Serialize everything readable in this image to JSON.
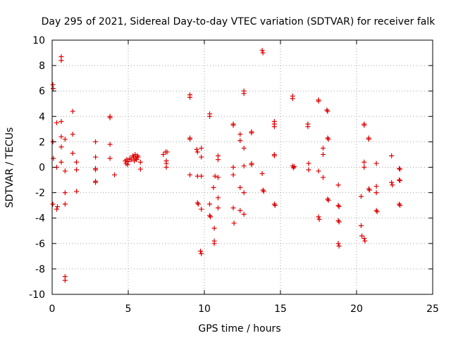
{
  "chart_data": {
    "type": "scatter",
    "title": "Day 295 of 2021, Sidereal Day-to-day VTEC variation (SDTVAR) for receiver falk",
    "xlabel": "GPS time / hours",
    "ylabel": "SDTVAR / TECUs",
    "xlim": [
      0,
      25
    ],
    "ylim": [
      -10,
      10
    ],
    "x_ticks": [
      0,
      5,
      10,
      15,
      20,
      25
    ],
    "y_ticks": [
      -10,
      -8,
      -6,
      -4,
      -2,
      0,
      2,
      4,
      6,
      8,
      10
    ],
    "grid": true,
    "marker": "+",
    "marker_color": "#e00000",
    "series": [
      {
        "name": "SDTVAR",
        "points": [
          [
            0.05,
            6.5
          ],
          [
            0.07,
            6.2
          ],
          [
            0.05,
            2.0
          ],
          [
            0.08,
            0.7
          ],
          [
            0.05,
            -2.9
          ],
          [
            0.3,
            3.5
          ],
          [
            0.3,
            -3.3
          ],
          [
            0.3,
            0.0
          ],
          [
            0.35,
            -3.1
          ],
          [
            0.6,
            8.7
          ],
          [
            0.6,
            8.4
          ],
          [
            0.6,
            3.6
          ],
          [
            0.6,
            2.4
          ],
          [
            0.6,
            1.6
          ],
          [
            0.6,
            0.4
          ],
          [
            0.85,
            2.2
          ],
          [
            0.85,
            -0.3
          ],
          [
            0.85,
            -2.0
          ],
          [
            0.85,
            -2.9
          ],
          [
            0.85,
            -8.6
          ],
          [
            0.85,
            -8.9
          ],
          [
            1.35,
            4.4
          ],
          [
            1.35,
            2.6
          ],
          [
            1.35,
            1.1
          ],
          [
            1.6,
            0.4
          ],
          [
            1.6,
            -0.2
          ],
          [
            1.6,
            -1.9
          ],
          [
            2.85,
            2.0
          ],
          [
            2.85,
            0.8
          ],
          [
            2.85,
            -0.1
          ],
          [
            2.85,
            -0.2
          ],
          [
            2.85,
            -1.1
          ],
          [
            2.85,
            -1.2
          ],
          [
            3.8,
            4.0
          ],
          [
            3.8,
            3.9
          ],
          [
            3.8,
            1.8
          ],
          [
            3.8,
            0.7
          ],
          [
            4.1,
            -0.6
          ],
          [
            4.8,
            0.5
          ],
          [
            4.85,
            0.3
          ],
          [
            4.9,
            0.6
          ],
          [
            4.95,
            0.2
          ],
          [
            5.0,
            0.45
          ],
          [
            5.1,
            0.7
          ],
          [
            5.2,
            0.6
          ],
          [
            5.3,
            0.9
          ],
          [
            5.35,
            0.8
          ],
          [
            5.4,
            0.5
          ],
          [
            5.45,
            1.0
          ],
          [
            5.5,
            0.7
          ],
          [
            5.55,
            0.6
          ],
          [
            5.6,
            0.9
          ],
          [
            5.65,
            0.8
          ],
          [
            5.8,
            0.4
          ],
          [
            5.8,
            -0.15
          ],
          [
            7.3,
            1.0
          ],
          [
            7.45,
            1.2
          ],
          [
            7.55,
            1.2
          ],
          [
            7.5,
            0.5
          ],
          [
            7.5,
            0.3
          ],
          [
            7.5,
            0.0
          ],
          [
            9.05,
            5.7
          ],
          [
            9.05,
            5.5
          ],
          [
            9.05,
            2.3
          ],
          [
            9.05,
            2.2
          ],
          [
            9.05,
            -0.6
          ],
          [
            9.5,
            1.4
          ],
          [
            9.55,
            1.2
          ],
          [
            9.55,
            -0.7
          ],
          [
            9.55,
            -2.8
          ],
          [
            9.6,
            -2.9
          ],
          [
            9.8,
            1.5
          ],
          [
            9.8,
            0.8
          ],
          [
            9.8,
            -0.7
          ],
          [
            9.8,
            -3.3
          ],
          [
            9.75,
            -6.6
          ],
          [
            9.8,
            -6.8
          ],
          [
            10.35,
            4.2
          ],
          [
            10.35,
            4.0
          ],
          [
            10.35,
            -2.9
          ],
          [
            10.35,
            -3.8
          ],
          [
            10.4,
            -3.9
          ],
          [
            10.6,
            -1.6
          ],
          [
            10.65,
            -4.8
          ],
          [
            10.65,
            -5.8
          ],
          [
            10.65,
            -6.0
          ],
          [
            10.7,
            -0.7
          ],
          [
            10.9,
            0.9
          ],
          [
            10.9,
            0.6
          ],
          [
            10.9,
            -0.8
          ],
          [
            10.9,
            -2.4
          ],
          [
            10.9,
            -3.2
          ],
          [
            11.9,
            3.4
          ],
          [
            11.9,
            3.3
          ],
          [
            11.9,
            0.0
          ],
          [
            11.9,
            -0.6
          ],
          [
            11.9,
            -3.2
          ],
          [
            11.95,
            -4.4
          ],
          [
            12.35,
            2.6
          ],
          [
            12.35,
            2.1
          ],
          [
            12.35,
            -1.6
          ],
          [
            12.35,
            -3.4
          ],
          [
            12.6,
            6.0
          ],
          [
            12.6,
            5.8
          ],
          [
            12.6,
            1.5
          ],
          [
            12.6,
            0.1
          ],
          [
            12.6,
            -2.0
          ],
          [
            12.6,
            -3.7
          ],
          [
            13.1,
            2.8
          ],
          [
            13.1,
            2.7
          ],
          [
            13.1,
            0.3
          ],
          [
            13.1,
            0.2
          ],
          [
            13.8,
            9.2
          ],
          [
            13.85,
            9.0
          ],
          [
            13.8,
            -0.5
          ],
          [
            13.85,
            -1.8
          ],
          [
            13.9,
            -1.9
          ],
          [
            14.6,
            3.6
          ],
          [
            14.6,
            3.4
          ],
          [
            14.6,
            3.2
          ],
          [
            14.6,
            1.0
          ],
          [
            14.6,
            0.9
          ],
          [
            14.6,
            -2.9
          ],
          [
            14.65,
            -3.0
          ],
          [
            15.8,
            5.6
          ],
          [
            15.8,
            5.4
          ],
          [
            15.8,
            0.1
          ],
          [
            15.85,
            -0.05
          ],
          [
            15.9,
            0.05
          ],
          [
            16.8,
            3.4
          ],
          [
            16.8,
            3.2
          ],
          [
            16.85,
            0.3
          ],
          [
            16.85,
            -0.2
          ],
          [
            17.5,
            5.3
          ],
          [
            17.5,
            5.2
          ],
          [
            17.5,
            -0.3
          ],
          [
            17.5,
            -3.9
          ],
          [
            17.55,
            -4.1
          ],
          [
            17.8,
            1.5
          ],
          [
            17.8,
            1.0
          ],
          [
            17.8,
            -0.8
          ],
          [
            18.05,
            4.5
          ],
          [
            18.1,
            4.4
          ],
          [
            18.1,
            2.3
          ],
          [
            18.15,
            2.2
          ],
          [
            18.1,
            -2.5
          ],
          [
            18.15,
            -2.6
          ],
          [
            18.8,
            -1.4
          ],
          [
            18.8,
            -3.0
          ],
          [
            18.85,
            -3.1
          ],
          [
            18.8,
            -4.2
          ],
          [
            18.85,
            -4.3
          ],
          [
            18.8,
            -6.0
          ],
          [
            18.85,
            -6.2
          ],
          [
            20.3,
            -2.3
          ],
          [
            20.3,
            -4.6
          ],
          [
            20.35,
            -5.4
          ],
          [
            20.5,
            3.4
          ],
          [
            20.5,
            3.3
          ],
          [
            20.5,
            0.4
          ],
          [
            20.5,
            0.0
          ],
          [
            20.5,
            -5.6
          ],
          [
            20.55,
            -5.8
          ],
          [
            20.8,
            2.3
          ],
          [
            20.8,
            2.2
          ],
          [
            20.8,
            -1.7
          ],
          [
            20.85,
            -1.8
          ],
          [
            21.3,
            0.3
          ],
          [
            21.3,
            -1.5
          ],
          [
            21.3,
            -2.0
          ],
          [
            21.3,
            -3.4
          ],
          [
            21.35,
            -3.5
          ],
          [
            22.3,
            0.9
          ],
          [
            22.3,
            -1.2
          ],
          [
            22.35,
            -1.4
          ],
          [
            22.8,
            -0.1
          ],
          [
            22.85,
            -0.15
          ],
          [
            22.8,
            -1.0
          ],
          [
            22.85,
            -1.05
          ],
          [
            22.8,
            -2.9
          ],
          [
            22.85,
            -3.0
          ]
        ]
      }
    ]
  }
}
